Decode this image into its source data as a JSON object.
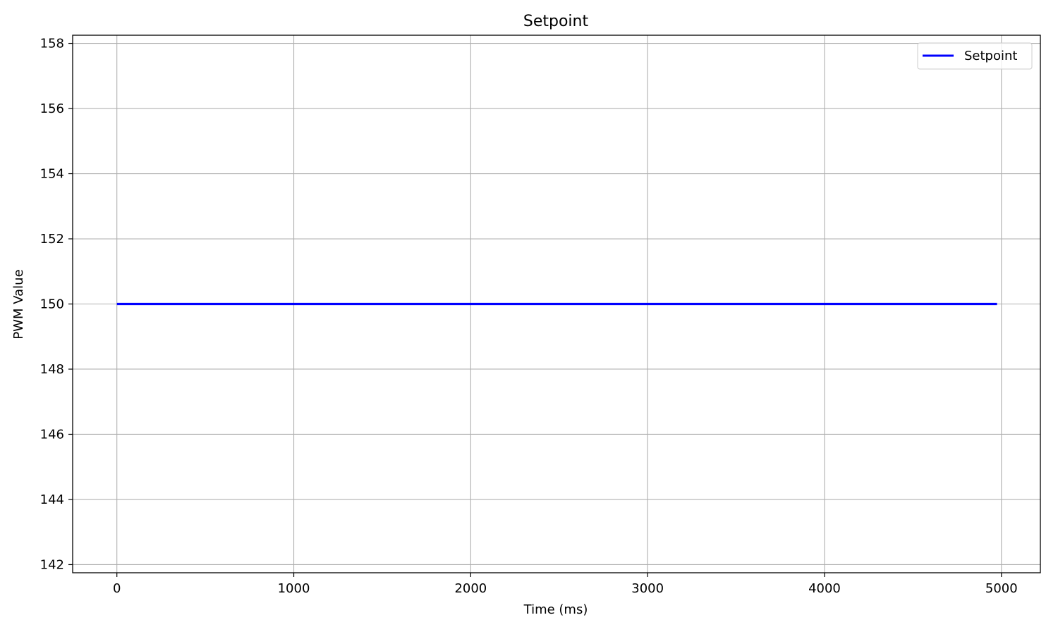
{
  "chart_data": {
    "type": "line",
    "title": "Setpoint",
    "xlabel": "Time (ms)",
    "ylabel": "PWM Value",
    "xlim": [
      -250,
      5220
    ],
    "ylim": [
      141.75,
      158.25
    ],
    "xticks": [
      0,
      1000,
      2000,
      3000,
      4000,
      5000
    ],
    "yticks": [
      142,
      144,
      146,
      148,
      150,
      152,
      154,
      156,
      158
    ],
    "xtick_labels": [
      "0",
      "1000",
      "2000",
      "3000",
      "4000",
      "5000"
    ],
    "ytick_labels": [
      "142",
      "144",
      "146",
      "148",
      "150",
      "152",
      "154",
      "156",
      "158"
    ],
    "grid": true,
    "legend_position": "top-right",
    "series": [
      {
        "name": "Setpoint",
        "color": "#0000ff",
        "x": [
          0,
          4975
        ],
        "y": [
          150,
          150
        ]
      }
    ]
  }
}
